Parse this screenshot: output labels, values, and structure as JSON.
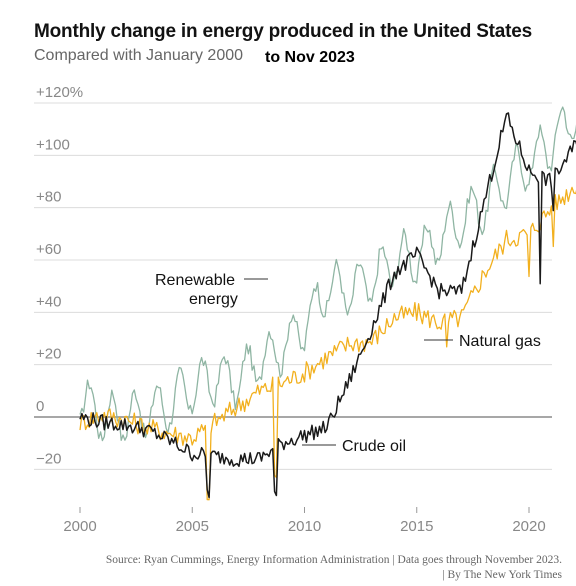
{
  "header": {
    "title": "Monthly change in energy produced in the United States",
    "subtitle": "Compared with January 2000",
    "subtitle_extra": "to Nov 2023"
  },
  "source": {
    "line1": "Source: Ryan Cummings, Energy Information Administration | Data goes through November 2023.",
    "line2": "| By The New York Times"
  },
  "chart_data": {
    "type": "line",
    "title": "Monthly change in energy produced in the United States",
    "subtitle": "Compared with January 2000",
    "xlabel": "",
    "ylabel": "",
    "xlim": [
      1999.7,
      2023.3
    ],
    "ylim": [
      -35,
      135
    ],
    "x_ticks": [
      {
        "value": 2000,
        "label": "2000"
      },
      {
        "value": 2005,
        "label": "2005"
      },
      {
        "value": 2010,
        "label": "2010"
      },
      {
        "value": 2015,
        "label": "2015"
      },
      {
        "value": 2020,
        "label": "2020"
      }
    ],
    "y_ticks": [
      {
        "value": 120,
        "label": "+120%"
      },
      {
        "value": 100,
        "label": "+100"
      },
      {
        "value": 80,
        "label": "+80"
      },
      {
        "value": 60,
        "label": "+60"
      },
      {
        "value": 40,
        "label": "+40"
      },
      {
        "value": 20,
        "label": "+20"
      },
      {
        "value": 0,
        "label": "0"
      },
      {
        "value": -20,
        "label": "−20"
      }
    ],
    "grid": true,
    "legend": "direct labels",
    "series": [
      {
        "name": "Renewable energy",
        "label_lines": [
          "Renewable",
          "energy"
        ],
        "color": "#8fb5a3",
        "x": [
          2000.0,
          2001.0,
          2002.0,
          2003.0,
          2004.0,
          2005.0,
          2006.0,
          2007.0,
          2008.0,
          2009.0,
          2010.0,
          2011.0,
          2012.0,
          2013.0,
          2014.0,
          2015.0,
          2016.0,
          2017.0,
          2018.0,
          2019.0,
          2020.0,
          2021.0,
          2022.0,
          2022.9
        ],
        "values": [
          7,
          0,
          0,
          2,
          5,
          11,
          15,
          14,
          22,
          27,
          35,
          50,
          48,
          52,
          60,
          61,
          68,
          76,
          81,
          90,
          97,
          105,
          115,
          118
        ]
      },
      {
        "name": "Natural gas",
        "label_lines": [
          "Natural gas"
        ],
        "color": "#f2b01e",
        "x": [
          2000.0,
          2001.0,
          2002.0,
          2003.0,
          2004.0,
          2005.0,
          2006.0,
          2007.0,
          2008.0,
          2009.0,
          2010.0,
          2011.0,
          2012.0,
          2013.0,
          2014.0,
          2015.0,
          2016.0,
          2017.0,
          2018.0,
          2019.0,
          2020.0,
          2021.0,
          2022.0,
          2022.9
        ],
        "values": [
          -2,
          1,
          -1,
          -4,
          -6,
          -8,
          -2,
          4,
          10,
          13,
          17,
          23,
          28,
          29,
          38,
          40,
          36,
          38,
          55,
          68,
          70,
          80,
          88,
          98
        ]
      },
      {
        "name": "Crude oil",
        "label_lines": [
          "Crude oil"
        ],
        "color": "#1a1a1a",
        "x": [
          2000.0,
          2001.0,
          2002.0,
          2003.0,
          2004.0,
          2005.0,
          2006.0,
          2007.0,
          2008.0,
          2009.0,
          2010.0,
          2011.0,
          2012.0,
          2013.0,
          2014.0,
          2015.0,
          2016.0,
          2017.0,
          2018.0,
          2019.0,
          2020.0,
          2021.0,
          2022.0,
          2022.9
        ],
        "values": [
          0,
          -2,
          -3,
          -5,
          -9,
          -14,
          -15,
          -16,
          -16,
          -10,
          -7,
          -4,
          14,
          34,
          55,
          62,
          48,
          48,
          82,
          115,
          94,
          90,
          103,
          118
        ]
      }
    ]
  }
}
